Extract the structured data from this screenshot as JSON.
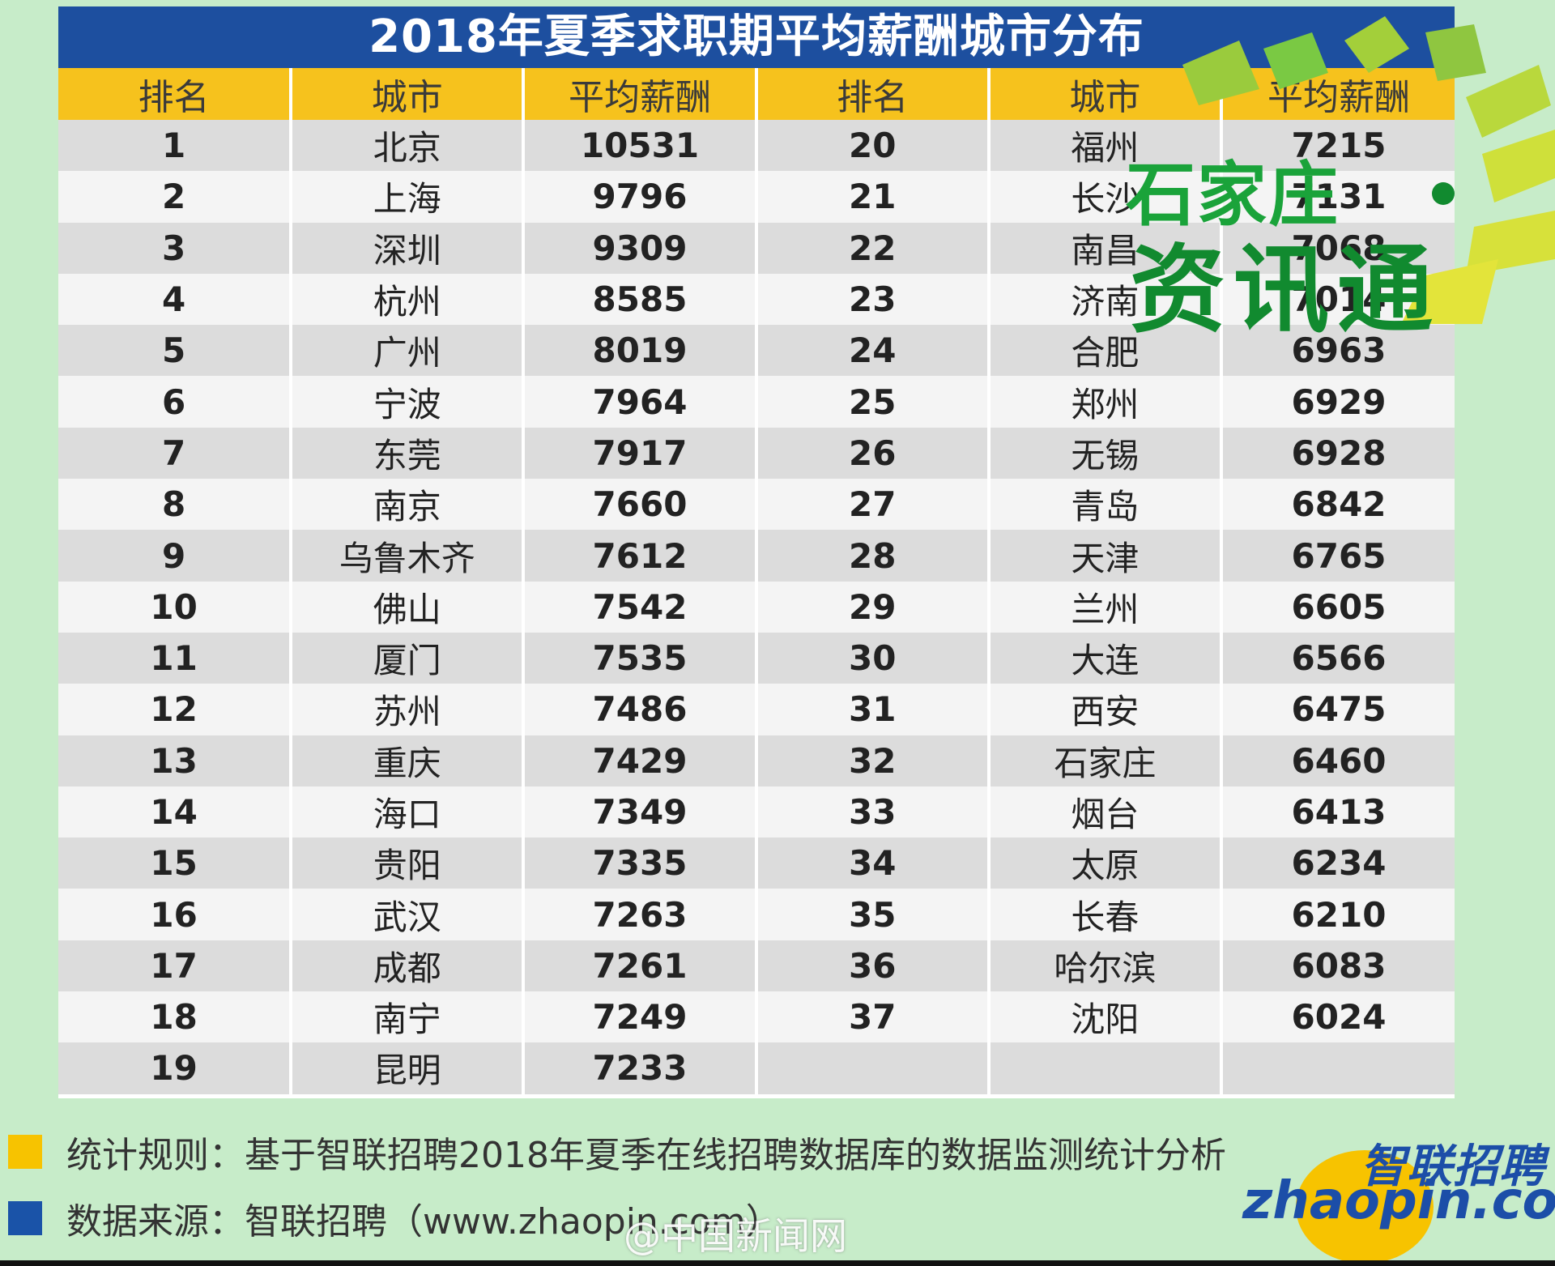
{
  "title": "2018年夏季求职期平均薪酬城市分布",
  "headers": [
    "排名",
    "城市",
    "平均薪酬",
    "排名",
    "城市",
    "平均薪酬"
  ],
  "rows": [
    {
      "rank": "1",
      "city": "北京",
      "salary": "10531",
      "rank2": "20",
      "city2": "福州",
      "salary2": "7215"
    },
    {
      "rank": "2",
      "city": "上海",
      "salary": "9796",
      "rank2": "21",
      "city2": "长沙",
      "salary2": "7131"
    },
    {
      "rank": "3",
      "city": "深圳",
      "salary": "9309",
      "rank2": "22",
      "city2": "南昌",
      "salary2": "7068"
    },
    {
      "rank": "4",
      "city": "杭州",
      "salary": "8585",
      "rank2": "23",
      "city2": "济南",
      "salary2": "7014"
    },
    {
      "rank": "5",
      "city": "广州",
      "salary": "8019",
      "rank2": "24",
      "city2": "合肥",
      "salary2": "6963"
    },
    {
      "rank": "6",
      "city": "宁波",
      "salary": "7964",
      "rank2": "25",
      "city2": "郑州",
      "salary2": "6929"
    },
    {
      "rank": "7",
      "city": "东莞",
      "salary": "7917",
      "rank2": "26",
      "city2": "无锡",
      "salary2": "6928"
    },
    {
      "rank": "8",
      "city": "南京",
      "salary": "7660",
      "rank2": "27",
      "city2": "青岛",
      "salary2": "6842"
    },
    {
      "rank": "9",
      "city": "乌鲁木齐",
      "salary": "7612",
      "rank2": "28",
      "city2": "天津",
      "salary2": "6765"
    },
    {
      "rank": "10",
      "city": "佛山",
      "salary": "7542",
      "rank2": "29",
      "city2": "兰州",
      "salary2": "6605"
    },
    {
      "rank": "11",
      "city": "厦门",
      "salary": "7535",
      "rank2": "30",
      "city2": "大连",
      "salary2": "6566"
    },
    {
      "rank": "12",
      "city": "苏州",
      "salary": "7486",
      "rank2": "31",
      "city2": "西安",
      "salary2": "6475"
    },
    {
      "rank": "13",
      "city": "重庆",
      "salary": "7429",
      "rank2": "32",
      "city2": "石家庄",
      "salary2": "6460"
    },
    {
      "rank": "14",
      "city": "海口",
      "salary": "7349",
      "rank2": "33",
      "city2": "烟台",
      "salary2": "6413"
    },
    {
      "rank": "15",
      "city": "贵阳",
      "salary": "7335",
      "rank2": "34",
      "city2": "太原",
      "salary2": "6234"
    },
    {
      "rank": "16",
      "city": "武汉",
      "salary": "7263",
      "rank2": "35",
      "city2": "长春",
      "salary2": "6210"
    },
    {
      "rank": "17",
      "city": "成都",
      "salary": "7261",
      "rank2": "36",
      "city2": "哈尔滨",
      "salary2": "6083"
    },
    {
      "rank": "18",
      "city": "南宁",
      "salary": "7249",
      "rank2": "37",
      "city2": "沈阳",
      "salary2": "6024"
    },
    {
      "rank": "19",
      "city": "昆明",
      "salary": "7233",
      "rank2": "",
      "city2": "",
      "salary2": ""
    }
  ],
  "watermark_logo": {
    "line1": "石家庄",
    "line2": "资讯通"
  },
  "legend": {
    "rule_label": "统计规则：基于智联招聘2018年夏季在线招聘数据库的数据监测统计分析",
    "source_label": "数据来源：智联招聘（www.zhaopin.com）"
  },
  "brand": {
    "cn": "智联招聘",
    "en": "zhaopin.com"
  },
  "weibo_watermark": "@中国新闻网",
  "colors": {
    "title_bg": "#1d4f9f",
    "header_bg": "#f6c21d",
    "page_bg": "#c7ecc9",
    "row_dark": "#dcdcdc",
    "row_light": "#f4f4f4"
  }
}
